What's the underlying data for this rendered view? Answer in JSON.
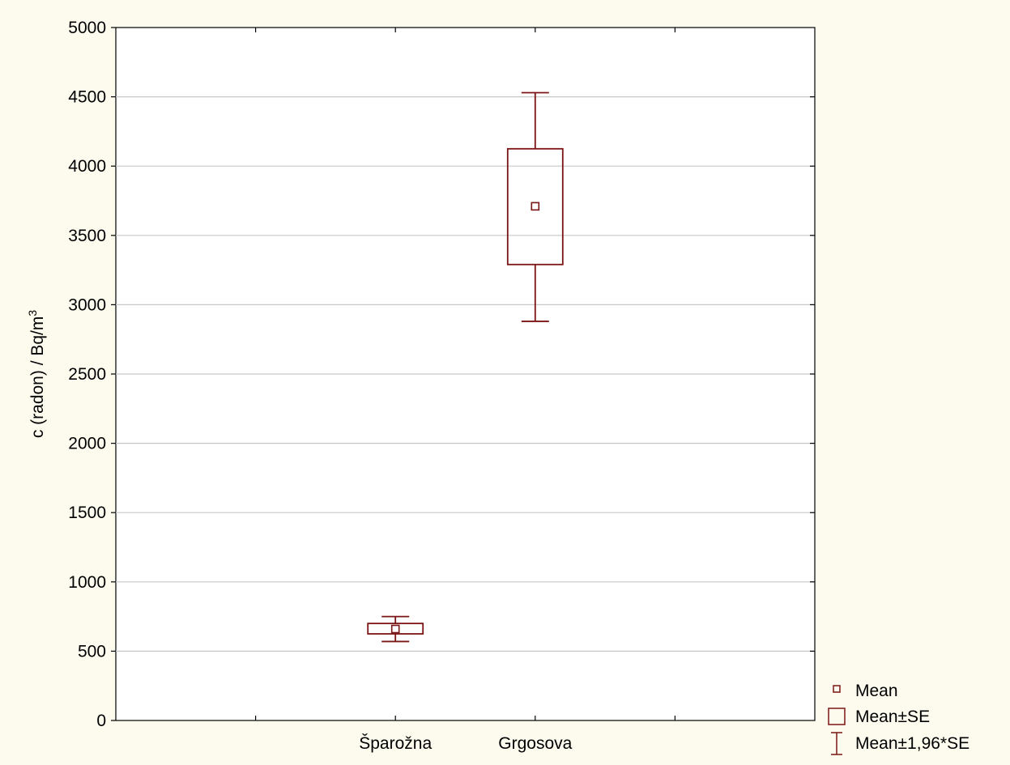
{
  "chart_data": {
    "type": "box",
    "categories": [
      "Šparožna",
      "Grgosova"
    ],
    "ylabel": "c (radon) / Bq/m",
    "ylabel_superscript": "3",
    "ylim": [
      0,
      5000
    ],
    "yticks": [
      0,
      500,
      1000,
      1500,
      2000,
      2500,
      3000,
      3500,
      4000,
      4500,
      5000
    ],
    "grid": true,
    "series": [
      {
        "name": "Mean",
        "values": [
          660,
          3710
        ]
      },
      {
        "name": "Mean±SE",
        "values": [
          [
            625,
            700
          ],
          [
            3290,
            4125
          ]
        ]
      },
      {
        "name": "Mean±1,96*SE",
        "values": [
          [
            570,
            750
          ],
          [
            2880,
            4530
          ]
        ]
      }
    ],
    "legend": {
      "position": "bottom-right",
      "entries": [
        "Mean",
        "Mean±SE",
        "Mean±1,96*SE"
      ]
    },
    "colors": {
      "mark": "#7b1414",
      "grid": "#c8c8c8",
      "plot_bg": "#ffffff",
      "page_bg": "#fdfbee"
    }
  }
}
